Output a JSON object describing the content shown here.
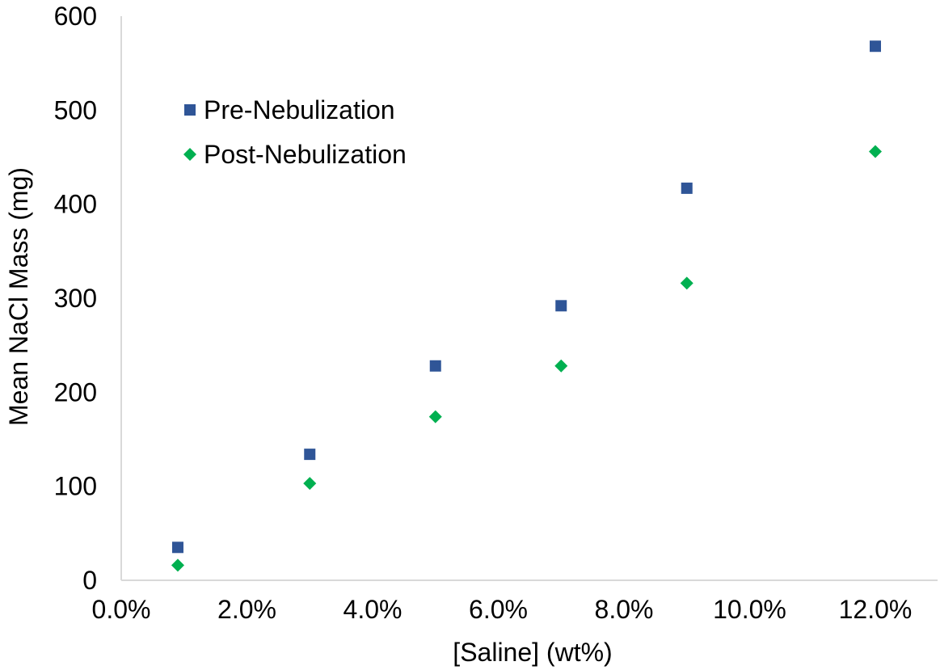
{
  "chart_data": {
    "type": "scatter",
    "title": "",
    "xlabel": "[Saline] (wt%)",
    "ylabel": "Mean NaCl Mass  (mg)",
    "xlim": [
      0,
      0.12
    ],
    "ylim": [
      0,
      600
    ],
    "x_ticks": [
      0,
      0.02,
      0.04,
      0.06,
      0.08,
      0.1,
      0.12
    ],
    "x_tick_labels": [
      "0.0%",
      "2.0%",
      "4.0%",
      "6.0%",
      "8.0%",
      "10.0%",
      "12.0%"
    ],
    "y_ticks": [
      0,
      100,
      200,
      300,
      400,
      500,
      600
    ],
    "y_tick_labels": [
      "0",
      "100",
      "200",
      "300",
      "400",
      "500",
      "600"
    ],
    "grid": false,
    "legend_position": "top-left",
    "series": [
      {
        "name": "Pre-Nebulization",
        "marker": "square",
        "color": "#2F5597",
        "points": [
          {
            "x": 0.009,
            "y": 35
          },
          {
            "x": 0.03,
            "y": 134
          },
          {
            "x": 0.05,
            "y": 228
          },
          {
            "x": 0.07,
            "y": 292
          },
          {
            "x": 0.09,
            "y": 417
          },
          {
            "x": 0.12,
            "y": 568
          }
        ]
      },
      {
        "name": "Post-Nebulization",
        "marker": "diamond",
        "color": "#00B050",
        "points": [
          {
            "x": 0.009,
            "y": 16
          },
          {
            "x": 0.03,
            "y": 103
          },
          {
            "x": 0.05,
            "y": 174
          },
          {
            "x": 0.07,
            "y": 228
          },
          {
            "x": 0.09,
            "y": 316
          },
          {
            "x": 0.12,
            "y": 456
          }
        ]
      }
    ]
  }
}
